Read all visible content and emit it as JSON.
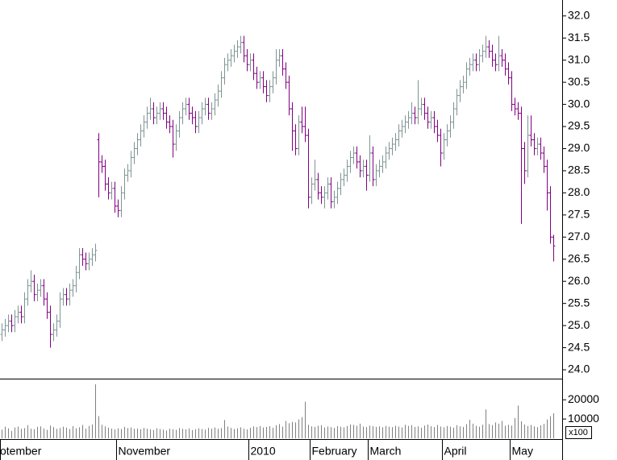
{
  "chart_data": {
    "type": "ohlc",
    "categories": [
      "otember",
      null,
      null,
      null,
      null,
      null,
      null,
      null,
      null,
      null,
      null,
      null,
      null,
      null,
      null,
      null,
      null,
      null,
      null,
      null,
      null,
      null,
      null,
      null,
      null,
      null,
      null,
      null,
      null,
      null,
      null,
      null,
      null,
      null,
      null,
      null,
      "November",
      null,
      null,
      null,
      null,
      null,
      null,
      null,
      null,
      null,
      null,
      null,
      null,
      null,
      null,
      null,
      null,
      null,
      null,
      null,
      null,
      null,
      null,
      null,
      null,
      null,
      null,
      null,
      null,
      null,
      null,
      null,
      null,
      null,
      null,
      null,
      null,
      null,
      null,
      null,
      null,
      "2010",
      null,
      null,
      null,
      null,
      null,
      null,
      null,
      null,
      null,
      null,
      null,
      null,
      null,
      null,
      null,
      null,
      null,
      null,
      "February",
      null,
      null,
      null,
      null,
      null,
      null,
      null,
      null,
      null,
      null,
      null,
      null,
      null,
      null,
      null,
      null,
      null,
      "March",
      null,
      null,
      null,
      null,
      null,
      null,
      null,
      null,
      null,
      null,
      null,
      null,
      null,
      null,
      null,
      null,
      null,
      null,
      null,
      null,
      null,
      null,
      "April",
      null,
      null,
      null,
      null,
      null,
      null,
      null,
      null,
      null,
      null,
      null,
      null,
      null,
      null,
      null,
      null,
      null,
      null,
      null,
      null,
      "May",
      null,
      null,
      null,
      null,
      null,
      null,
      null,
      null,
      null,
      null,
      null,
      null,
      null
    ],
    "open": [
      24.8,
      24.9,
      25.0,
      25.1,
      25.0,
      25.2,
      25.3,
      25.2,
      25.6,
      25.9,
      26.0,
      25.7,
      25.8,
      25.9,
      25.6,
      25.3,
      24.8,
      24.9,
      25.1,
      25.6,
      25.7,
      25.6,
      25.8,
      25.9,
      26.2,
      26.6,
      26.5,
      26.4,
      26.5,
      26.6,
      29.2,
      28.7,
      28.6,
      28.2,
      28.0,
      28.1,
      27.7,
      27.6,
      28.0,
      28.4,
      28.5,
      28.8,
      29.0,
      29.2,
      29.4,
      29.6,
      29.8,
      29.9,
      29.7,
      29.8,
      29.9,
      29.8,
      29.6,
      29.5,
      29.1,
      29.4,
      29.7,
      29.9,
      30.0,
      29.8,
      29.7,
      29.5,
      29.7,
      29.9,
      30.0,
      29.8,
      29.9,
      30.1,
      30.3,
      30.6,
      30.9,
      31.0,
      31.1,
      31.2,
      31.3,
      31.4,
      31.1,
      30.9,
      31.0,
      30.7,
      30.5,
      30.6,
      30.4,
      30.2,
      30.4,
      30.6,
      31.0,
      31.1,
      30.8,
      30.5,
      29.9,
      29.4,
      29.0,
      29.6,
      29.5,
      29.3,
      27.9,
      28.2,
      28.3,
      28.0,
      27.9,
      28.0,
      28.2,
      27.8,
      27.9,
      28.1,
      28.3,
      28.4,
      28.6,
      28.8,
      28.9,
      28.7,
      28.5,
      28.6,
      28.4,
      28.9,
      28.3,
      28.5,
      28.6,
      28.7,
      28.9,
      29.0,
      29.1,
      29.2,
      29.4,
      29.5,
      29.6,
      29.7,
      29.8,
      29.7,
      29.9,
      30.0,
      29.8,
      29.6,
      29.7,
      29.5,
      29.3,
      28.9,
      29.2,
      29.4,
      29.6,
      29.9,
      30.2,
      30.4,
      30.5,
      30.8,
      30.9,
      31.0,
      30.9,
      31.1,
      31.2,
      31.3,
      31.2,
      31.0,
      30.9,
      31.1,
      31.0,
      30.8,
      30.6,
      30.0,
      29.9,
      29.8,
      29.0,
      28.5,
      29.3,
      29.2,
      29.0,
      29.1,
      28.9,
      28.6,
      28.0,
      27.0
    ],
    "high": [
      25.05,
      25.15,
      25.25,
      25.25,
      25.35,
      25.45,
      25.45,
      25.75,
      26.05,
      26.25,
      26.15,
      25.95,
      26.05,
      26.05,
      25.75,
      25.45,
      25.05,
      25.25,
      25.75,
      25.85,
      25.85,
      25.95,
      26.05,
      26.35,
      26.75,
      26.75,
      26.65,
      26.65,
      26.75,
      26.85,
      29.35,
      28.85,
      28.75,
      28.35,
      28.25,
      28.25,
      27.85,
      28.15,
      28.55,
      28.65,
      28.95,
      29.15,
      29.35,
      29.55,
      29.75,
      29.95,
      30.15,
      30.05,
      29.95,
      30.05,
      30.05,
      29.95,
      29.75,
      29.65,
      29.55,
      29.85,
      30.05,
      30.15,
      30.15,
      29.95,
      29.85,
      29.85,
      30.05,
      30.15,
      30.15,
      30.05,
      30.25,
      30.45,
      30.75,
      31.05,
      31.15,
      31.25,
      31.35,
      31.45,
      31.55,
      31.55,
      31.25,
      31.15,
      31.15,
      30.85,
      30.75,
      30.75,
      30.55,
      30.55,
      30.75,
      31.25,
      31.25,
      31.25,
      30.95,
      30.65,
      30.05,
      29.55,
      29.75,
      29.95,
      29.95,
      29.45,
      28.35,
      28.75,
      28.45,
      28.15,
      28.15,
      28.35,
      28.35,
      28.05,
      28.25,
      28.45,
      28.55,
      28.75,
      28.95,
      29.05,
      29.05,
      28.85,
      28.75,
      28.75,
      29.3,
      29.05,
      28.65,
      28.75,
      28.85,
      29.05,
      29.15,
      29.25,
      29.35,
      29.55,
      29.65,
      29.75,
      29.85,
      30.05,
      29.95,
      30.55,
      30.15,
      30.15,
      29.95,
      29.85,
      29.85,
      29.65,
      29.45,
      29.35,
      29.55,
      29.75,
      30.05,
      30.35,
      30.55,
      30.65,
      30.95,
      31.05,
      31.15,
      31.15,
      31.25,
      31.35,
      31.55,
      31.45,
      31.35,
      31.15,
      31.55,
      31.25,
      31.15,
      30.95,
      30.75,
      30.15,
      30.05,
      29.95,
      29.15,
      29.75,
      29.75,
      29.35,
      29.25,
      29.25,
      29.05,
      28.75,
      28.15,
      27.05
    ],
    "low": [
      24.65,
      24.75,
      24.85,
      24.85,
      24.85,
      25.05,
      25.05,
      25.05,
      25.45,
      25.75,
      25.55,
      25.55,
      25.65,
      25.45,
      25.15,
      24.5,
      24.65,
      24.75,
      24.95,
      25.45,
      25.45,
      25.45,
      25.65,
      25.75,
      26.05,
      26.35,
      26.25,
      26.25,
      26.35,
      26.45,
      27.9,
      28.45,
      28.05,
      27.85,
      27.85,
      27.55,
      27.45,
      27.45,
      27.85,
      28.25,
      28.35,
      28.65,
      28.85,
      29.05,
      29.25,
      29.45,
      29.65,
      29.55,
      29.55,
      29.65,
      29.65,
      29.45,
      29.35,
      28.8,
      28.95,
      29.25,
      29.55,
      29.75,
      29.65,
      29.55,
      29.35,
      29.35,
      29.55,
      29.75,
      29.65,
      29.65,
      29.75,
      29.95,
      30.15,
      30.45,
      30.75,
      30.85,
      30.95,
      31.05,
      31.15,
      30.95,
      30.75,
      30.75,
      30.55,
      30.35,
      30.35,
      30.25,
      30.05,
      30.05,
      30.25,
      30.45,
      30.85,
      30.65,
      30.35,
      29.75,
      28.95,
      28.85,
      28.85,
      29.35,
      29.15,
      27.65,
      27.75,
      28.05,
      27.85,
      27.75,
      27.65,
      27.85,
      27.65,
      27.65,
      27.75,
      27.95,
      28.15,
      28.25,
      28.45,
      28.65,
      28.55,
      28.35,
      28.35,
      28.05,
      28.25,
      28.15,
      28.15,
      28.35,
      28.45,
      28.55,
      28.75,
      28.85,
      28.95,
      29.05,
      29.25,
      29.35,
      29.45,
      29.55,
      29.55,
      29.55,
      29.75,
      29.65,
      29.45,
      29.45,
      29.35,
      29.15,
      28.6,
      28.75,
      29.05,
      29.25,
      29.45,
      29.75,
      30.05,
      30.25,
      30.35,
      30.65,
      30.75,
      30.75,
      30.75,
      30.95,
      31.05,
      31.05,
      30.85,
      30.75,
      30.75,
      30.85,
      30.65,
      30.45,
      29.85,
      29.75,
      29.65,
      27.3,
      28.2,
      28.35,
      29.05,
      28.85,
      28.85,
      28.75,
      28.45,
      27.6,
      26.85,
      26.45
    ],
    "close": [
      24.9,
      25.0,
      25.1,
      25.0,
      25.2,
      25.3,
      25.2,
      25.6,
      25.9,
      26.0,
      25.7,
      25.8,
      25.9,
      25.6,
      25.3,
      24.8,
      24.9,
      25.1,
      25.6,
      25.7,
      25.6,
      25.8,
      25.9,
      26.2,
      26.6,
      26.5,
      26.4,
      26.5,
      26.6,
      26.7,
      28.7,
      28.6,
      28.2,
      28.0,
      28.1,
      27.7,
      27.6,
      28.0,
      28.4,
      28.5,
      28.8,
      29.0,
      29.2,
      29.4,
      29.6,
      29.8,
      29.9,
      29.7,
      29.8,
      29.9,
      29.8,
      29.6,
      29.5,
      29.1,
      29.4,
      29.7,
      29.9,
      30.0,
      29.8,
      29.7,
      29.5,
      29.7,
      29.9,
      30.0,
      29.8,
      29.9,
      30.1,
      30.3,
      30.6,
      30.9,
      31.0,
      31.1,
      31.2,
      31.3,
      31.4,
      31.1,
      30.9,
      31.0,
      30.7,
      30.5,
      30.6,
      30.4,
      30.2,
      30.4,
      30.6,
      31.0,
      31.1,
      30.8,
      30.5,
      29.9,
      29.4,
      29.0,
      29.6,
      29.5,
      29.3,
      27.9,
      28.2,
      28.3,
      28.0,
      27.9,
      28.0,
      28.2,
      27.8,
      27.9,
      28.1,
      28.3,
      28.4,
      28.6,
      28.8,
      28.9,
      28.7,
      28.5,
      28.6,
      28.4,
      28.9,
      28.3,
      28.5,
      28.6,
      28.7,
      28.9,
      29.0,
      29.1,
      29.2,
      29.4,
      29.5,
      29.6,
      29.7,
      29.8,
      29.7,
      29.9,
      30.0,
      29.8,
      29.6,
      29.7,
      29.5,
      29.3,
      28.9,
      29.2,
      29.4,
      29.6,
      29.9,
      30.2,
      30.4,
      30.5,
      30.8,
      30.9,
      31.0,
      30.9,
      31.1,
      31.2,
      31.3,
      31.2,
      31.0,
      30.9,
      31.1,
      31.0,
      30.8,
      30.6,
      30.0,
      29.9,
      29.8,
      29.0,
      28.5,
      29.3,
      29.2,
      29.0,
      29.1,
      28.9,
      28.6,
      28.0,
      27.0,
      26.8
    ],
    "up_color": "#7f9494",
    "down_color": "#800080",
    "ylim": [
      23.8,
      32.36
    ],
    "yticks": [
      {
        "value": 24,
        "label": "24.0"
      },
      24.5,
      {
        "value": 25,
        "label": "25.0"
      },
      25.5,
      {
        "value": 26,
        "label": "26.0"
      },
      26.5,
      {
        "value": 27,
        "label": "27.0"
      },
      27.5,
      {
        "value": 28,
        "label": "28.0"
      },
      28.5,
      {
        "value": 29,
        "label": "29.0"
      },
      29.5,
      {
        "value": 30,
        "label": "30.0"
      },
      30.5,
      {
        "value": 31,
        "label": "31.0"
      },
      31.5,
      {
        "value": 32,
        "label": "32.0"
      }
    ],
    "volume": {
      "values": [
        4500,
        6000,
        5200,
        3800,
        5600,
        6100,
        4900,
        5300,
        6800,
        5000,
        4700,
        5900,
        6200,
        5100,
        4400,
        6600,
        5800,
        4900,
        5300,
        6000,
        5500,
        4800,
        6300,
        5200,
        5700,
        6900,
        5000,
        6400,
        7200,
        28000,
        11500,
        7000,
        6200,
        5500,
        5000,
        4600,
        5200,
        4800,
        5900,
        5300,
        5600,
        4900,
        5100,
        4700,
        5400,
        5000,
        4600,
        4300,
        5200,
        4800,
        4500,
        4100,
        5000,
        4700,
        4400,
        5300,
        4900,
        4600,
        5100,
        4300,
        4700,
        5200,
        4800,
        4500,
        5400,
        5000,
        5600,
        4900,
        5300,
        9500,
        6100,
        5400,
        4800,
        5200,
        5700,
        5000,
        4600,
        5500,
        6200,
        5800,
        6400,
        5600,
        5900,
        6300,
        5500,
        6800,
        7400,
        6100,
        9000,
        7800,
        8500,
        8200,
        9800,
        11000,
        19000,
        7000,
        6200,
        5900,
        6500,
        6800,
        5600,
        6100,
        5800,
        5400,
        6300,
        6000,
        5700,
        6400,
        7200,
        6900,
        6500,
        7600,
        6100,
        5800,
        6600,
        6300,
        5900,
        6200,
        5700,
        6400,
        6000,
        5800,
        6500,
        6100,
        5600,
        7000,
        6400,
        6800,
        5900,
        6200,
        5500,
        6600,
        7100,
        6300,
        5800,
        6900,
        6100,
        5700,
        6400,
        6000,
        5500,
        6800,
        6200,
        5900,
        7300,
        9600,
        7600,
        6500,
        6000,
        7000,
        15000,
        7400,
        6800,
        8200,
        7600,
        9000,
        6500,
        7000,
        6600,
        10500,
        17000,
        8800,
        7200,
        6400,
        6900,
        6200,
        5800,
        6700,
        7500,
        9800,
        11500,
        13000
      ],
      "color": "#808080",
      "ylim": [
        0,
        31000
      ],
      "yticks": [
        10000,
        20000
      ],
      "unit_label": "x100"
    }
  }
}
